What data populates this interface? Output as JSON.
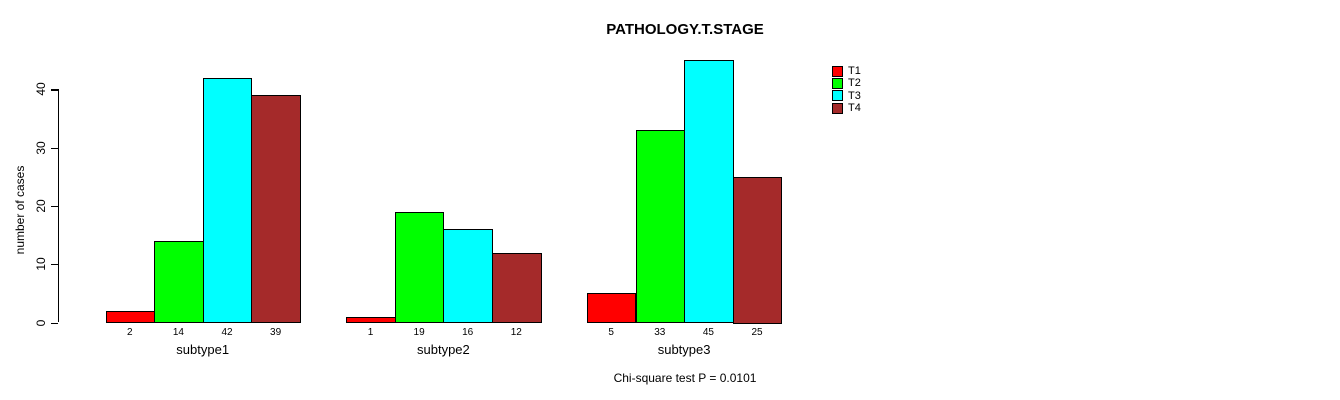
{
  "chart_data": {
    "type": "bar",
    "title": "PATHOLOGY.T.STAGE",
    "xlabel": "",
    "ylabel": "number of cases",
    "categories": [
      "subtype1",
      "subtype2",
      "subtype3"
    ],
    "series": [
      {
        "name": "T1",
        "color": "#FF0000",
        "values": [
          2,
          1,
          5
        ]
      },
      {
        "name": "T2",
        "color": "#00FF00",
        "values": [
          14,
          19,
          33
        ]
      },
      {
        "name": "T3",
        "color": "#00FFFF",
        "values": [
          42,
          16,
          45
        ]
      },
      {
        "name": "T4",
        "color": "#A52A2A",
        "values": [
          39,
          12,
          25
        ]
      }
    ],
    "yticks": [
      0,
      10,
      20,
      30,
      40
    ],
    "ylim": [
      0,
      45
    ],
    "grid": false,
    "bar_value_labels": true,
    "legend_position": "top-right",
    "annotation": "Chi-square test P = 0.0101"
  }
}
